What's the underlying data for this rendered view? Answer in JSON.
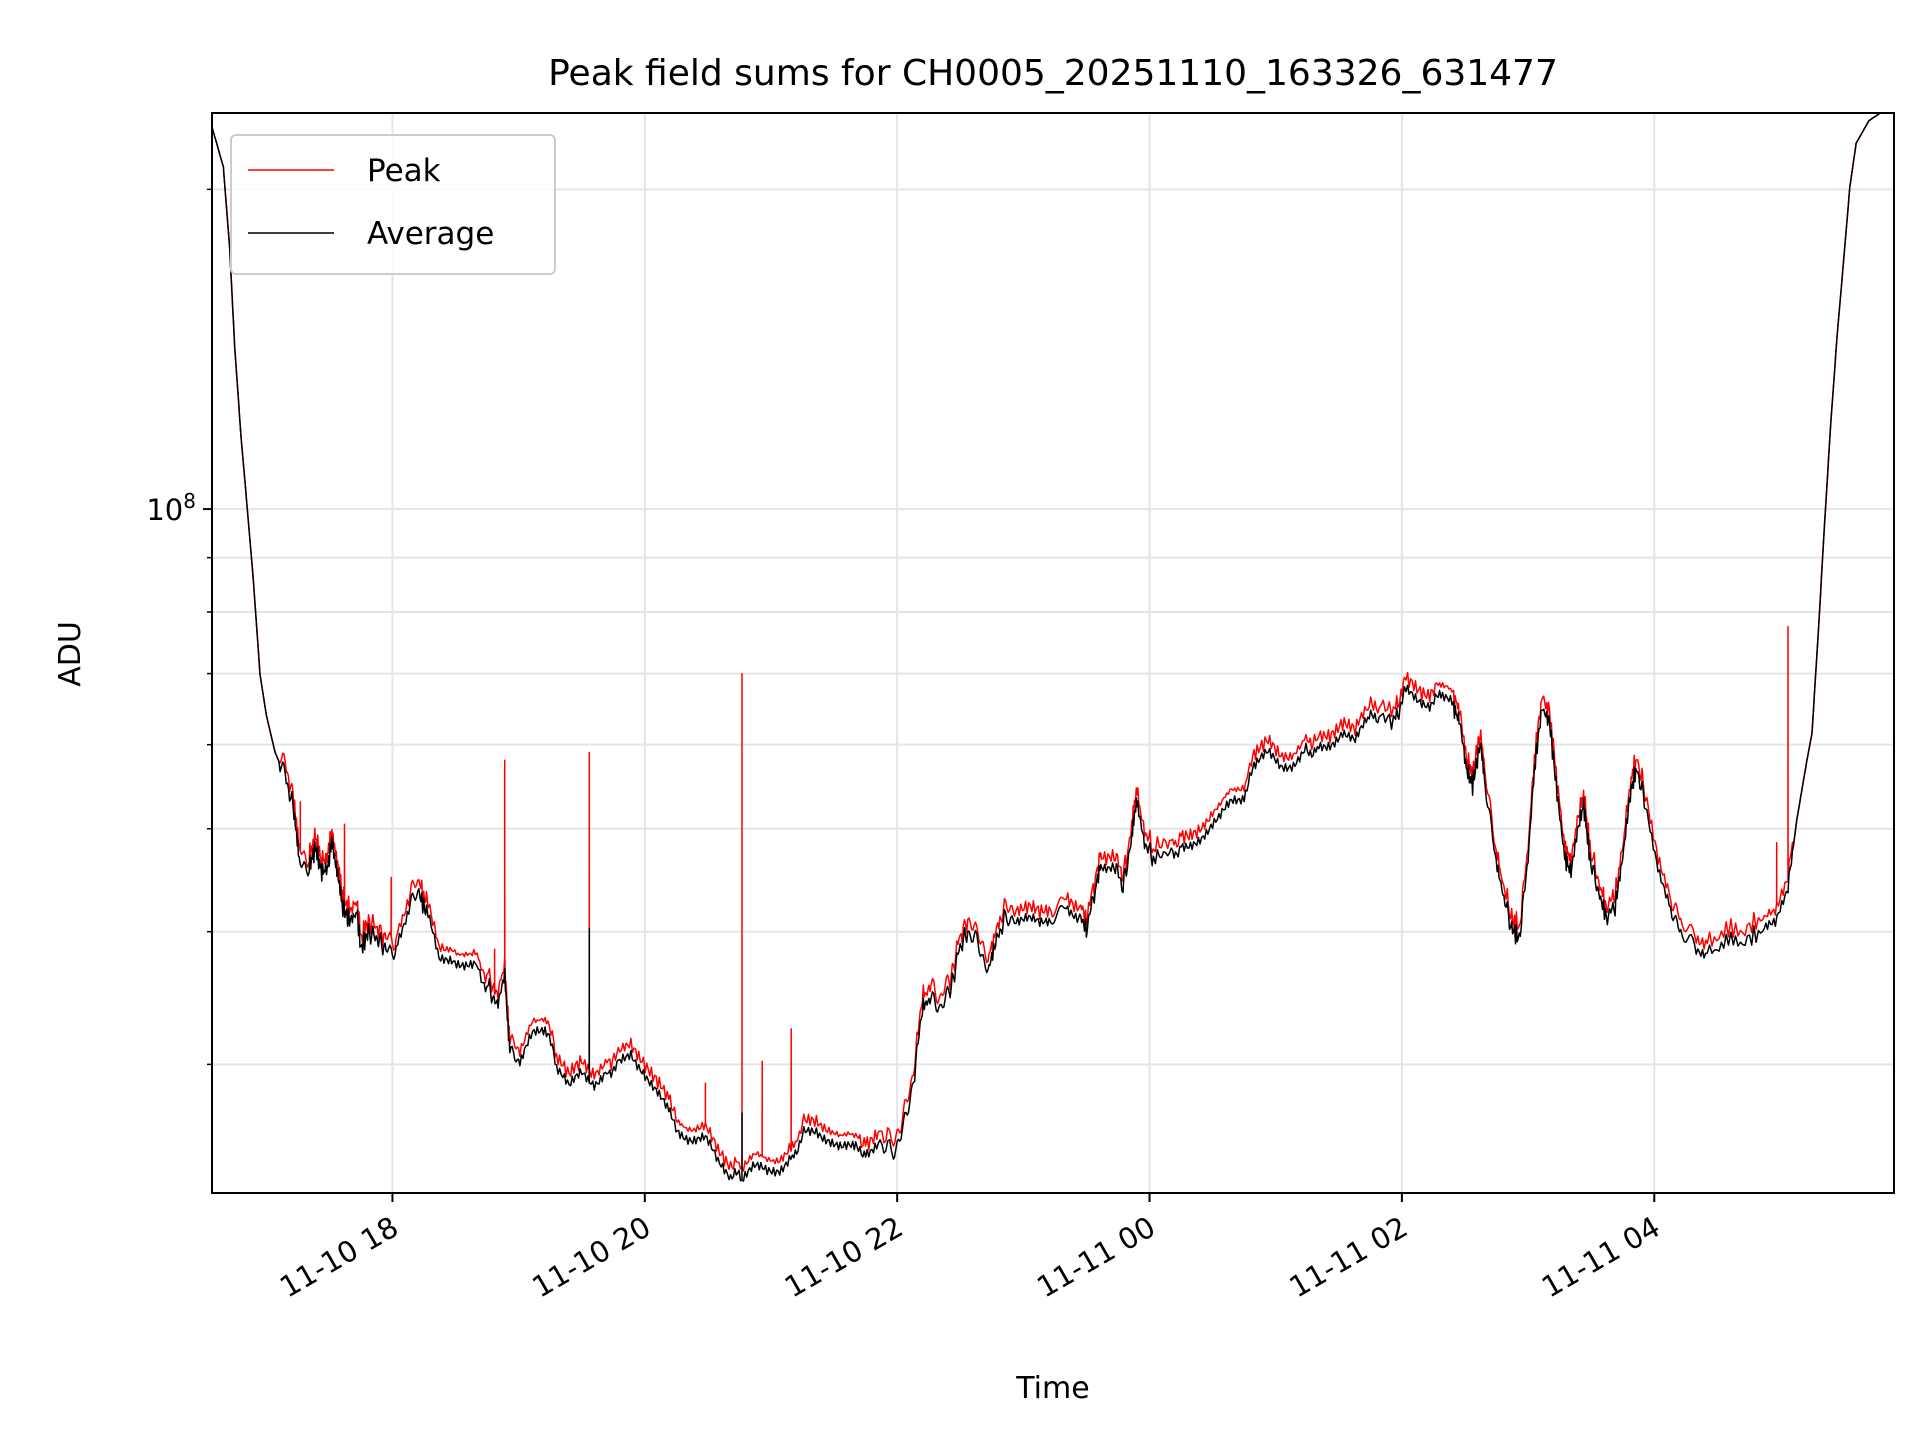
{
  "chart_data": {
    "type": "line",
    "title": "Peak field sums for CH0005_20251110_163326_631477",
    "xlabel": "Time",
    "ylabel": "ADU",
    "yscale": "log",
    "ylim": [
      22700000.0,
      236000000.0
    ],
    "xlim_hours": [
      16.57,
      29.9
    ],
    "x_unit": "hours since 11-10 00:00",
    "grid": true,
    "legend_position": "upper-left",
    "legend": [
      "Peak",
      "Average"
    ],
    "colors": {
      "Peak": "#ff0000",
      "Average": "#000000",
      "grid": "#e5e5e5"
    },
    "x_ticks": [
      {
        "hour": 18,
        "label": "11-10 18"
      },
      {
        "hour": 20,
        "label": "11-10 20"
      },
      {
        "hour": 22,
        "label": "11-10 22"
      },
      {
        "hour": 24,
        "label": "11-11 00"
      },
      {
        "hour": 26,
        "label": "11-11 02"
      },
      {
        "hour": 28,
        "label": "11-11 04"
      }
    ],
    "y_major_ticks": [
      {
        "value": 100000000.0,
        "base": "10",
        "exp": "8"
      }
    ],
    "y_minor_ticks": [
      30000000.0,
      40000000.0,
      50000000.0,
      60000000.0,
      70000000.0,
      80000000.0,
      90000000.0,
      200000000.0
    ],
    "average": {
      "x": [
        16.57,
        16.66,
        16.71,
        16.75,
        16.8,
        16.85,
        16.9,
        16.95,
        17.0,
        17.07,
        17.15,
        17.22,
        17.26,
        17.34,
        17.39,
        17.44,
        17.49,
        17.52,
        17.56,
        17.6,
        17.66,
        17.72,
        17.75,
        17.81,
        17.88,
        17.95,
        18.03,
        18.13,
        18.21,
        18.27,
        18.37,
        18.47,
        18.57,
        18.67,
        18.76,
        18.83,
        18.89,
        18.93,
        19.01,
        19.11,
        19.21,
        19.3,
        19.4,
        19.5,
        19.6,
        19.7,
        19.79,
        19.89,
        19.99,
        20.09,
        20.19,
        20.28,
        20.38,
        20.48,
        20.58,
        20.68,
        20.77,
        20.87,
        20.97,
        21.07,
        21.17,
        21.26,
        21.36,
        21.46,
        21.56,
        21.66,
        21.75,
        21.85,
        21.97,
        22.05,
        22.13,
        22.2,
        22.26,
        22.34,
        22.42,
        22.49,
        22.56,
        22.64,
        22.72,
        22.78,
        22.85,
        22.93,
        23.03,
        23.13,
        23.23,
        23.34,
        23.44,
        23.5,
        23.57,
        23.62,
        23.72,
        23.79,
        23.86,
        23.9,
        23.96,
        24.03,
        24.16,
        24.25,
        24.35,
        24.45,
        24.55,
        24.65,
        24.75,
        24.84,
        24.94,
        25.04,
        25.14,
        25.24,
        25.33,
        25.43,
        25.53,
        25.63,
        25.73,
        25.82,
        25.95,
        26.02,
        26.12,
        26.22,
        26.31,
        26.41,
        26.46,
        26.51,
        26.56,
        26.62,
        26.66,
        26.74,
        26.8,
        26.87,
        26.93,
        27.0,
        27.05,
        27.11,
        27.17,
        27.23,
        27.29,
        27.34,
        27.39,
        27.44,
        27.49,
        27.56,
        27.62,
        27.69,
        27.75,
        27.81,
        27.86,
        27.93,
        28.03,
        28.13,
        28.21,
        28.32,
        28.42,
        28.57,
        28.72,
        28.86,
        28.96,
        29.06,
        29.13,
        29.21,
        29.25,
        29.3,
        29.35,
        29.4,
        29.45,
        29.5,
        29.55,
        29.6,
        29.7,
        29.79,
        29.9
      ],
      "y": [
        229000000.0,
        210000000.0,
        176000000.0,
        142000000.0,
        117000000.0,
        100000000.0,
        85000000.0,
        70000000.0,
        64000000.0,
        59000000.0,
        56000000.0,
        52000000.0,
        46500000.0,
        46000000.0,
        48000000.0,
        45500000.0,
        46000000.0,
        49000000.0,
        46000000.0,
        42300000.0,
        41000000.0,
        41600000.0,
        38500000.0,
        40000000.0,
        39400000.0,
        38500000.0,
        38500000.0,
        42300000.0,
        43500000.0,
        41600000.0,
        37500000.0,
        38000000.0,
        37500000.0,
        37000000.0,
        35500000.0,
        34000000.0,
        36500000.0,
        31000000.0,
        29800000.0,
        31800000.0,
        32500000.0,
        29800000.0,
        28300000.0,
        29400000.0,
        29000000.0,
        29800000.0,
        29800000.0,
        30800000.0,
        29800000.0,
        28300000.0,
        26800000.0,
        26100000.0,
        25600000.0,
        25400000.0,
        24100000.0,
        23600000.0,
        23300000.0,
        23800000.0,
        23800000.0,
        24100000.0,
        24800000.0,
        25700000.0,
        26100000.0,
        25700000.0,
        25000000.0,
        24800000.0,
        25000000.0,
        25400000.0,
        24800000.0,
        26100000.0,
        29000000.0,
        34000000.0,
        34500000.0,
        34000000.0,
        35000000.0,
        38500000.0,
        40000000.0,
        39000000.0,
        36800000.0,
        39000000.0,
        41000000.0,
        41300000.0,
        41000000.0,
        40300000.0,
        41000000.0,
        42500000.0,
        41600000.0,
        40200000.0,
        44000000.0,
        46500000.0,
        46500000.0,
        44000000.0,
        49000000.0,
        53000000.0,
        48500000.0,
        47000000.0,
        47500000.0,
        48200000.0,
        49000000.0,
        49500000.0,
        50600000.0,
        53000000.0,
        54000000.0,
        57000000.0,
        58500000.0,
        57500000.0,
        58000000.0,
        59500000.0,
        59500000.0,
        60500000.0,
        62000000.0,
        60000000.0,
        63000000.0,
        64000000.0,
        63000000.0,
        67000000.0,
        66000000.0,
        66000000.0,
        66000000.0,
        65000000.0,
        63000000.0,
        57000000.0,
        55000000.0,
        60000000.0,
        55500000.0,
        47000000.0,
        43500000.0,
        40300000.0,
        39400000.0,
        47000000.0,
        57000000.0,
        65000000.0,
        63000000.0,
        54000000.0,
        47000000.0,
        45500000.0,
        49700000.0,
        52700000.0,
        47000000.0,
        43500000.0,
        41300000.0,
        42300000.0,
        47000000.0,
        54000000.0,
        57000000.0,
        52700000.0,
        46500000.0,
        42300000.0,
        40000000.0,
        38900000.0,
        38500000.0,
        39000000.0,
        39300000.0,
        40000000.0,
        40300000.0,
        44000000.0,
        51000000.0,
        58000000.0,
        61500000.0,
        76500000.0,
        97000000.0,
        121000000.0,
        146000000.0,
        171000000.0,
        201000000.0,
        221000000.0,
        232000000.0,
        236000000.0,
        236000000.0
      ]
    },
    "peak": {
      "ratio_to_average": 1.015,
      "spikes": [
        {
          "x": 17.27,
          "y": 53000000.0
        },
        {
          "x": 17.62,
          "y": 50500000.0
        },
        {
          "x": 17.99,
          "y": 45000000.0
        },
        {
          "x": 18.81,
          "y": 38500000.0
        },
        {
          "x": 18.89,
          "y": 58000000.0
        },
        {
          "x": 19.56,
          "y": 59000000.0
        },
        {
          "x": 20.48,
          "y": 28800000.0
        },
        {
          "x": 20.77,
          "y": 70000000.0
        },
        {
          "x": 20.93,
          "y": 30200000.0
        },
        {
          "x": 21.16,
          "y": 32400000.0
        },
        {
          "x": 28.97,
          "y": 48500000.0
        },
        {
          "x": 29.06,
          "y": 77500000.0
        }
      ]
    },
    "average_spikes": [
      {
        "x": 19.56,
        "y": 40300000.0
      },
      {
        "x": 20.77,
        "y": 27000000.0
      }
    ]
  }
}
